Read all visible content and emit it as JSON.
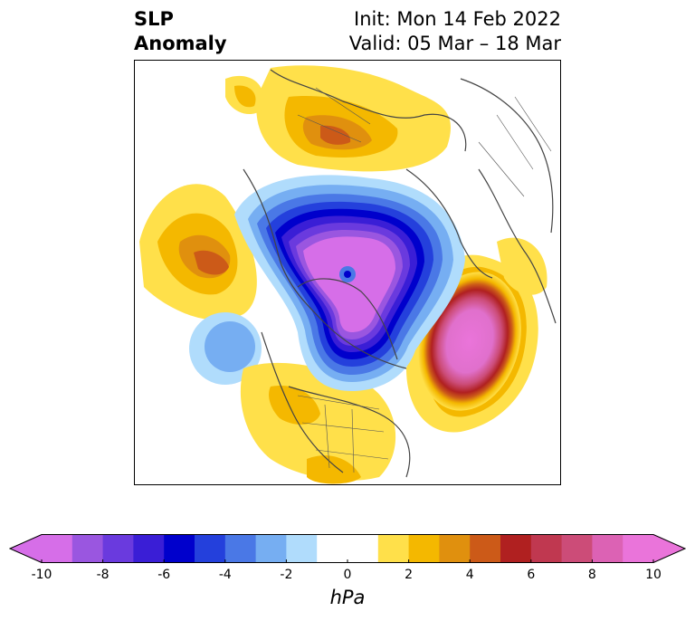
{
  "title": {
    "line1": "SLP",
    "line2": "Anomaly"
  },
  "subtitle": {
    "line1": "Init: Mon 14 Feb 2022",
    "line2": "Valid: 05 Mar – 18 Mar"
  },
  "colorbar": {
    "units": "hPa",
    "ticks": [
      "-10",
      "-8",
      "-6",
      "-4",
      "-2",
      "0",
      "2",
      "4",
      "6",
      "8",
      "10"
    ],
    "levels": [
      -10,
      10
    ],
    "extend": "both",
    "colors": [
      "#d66ee8",
      "#9a56e0",
      "#6a3ade",
      "#3a1ed6",
      "#0000cc",
      "#2440dc",
      "#4a78e6",
      "#76aef2",
      "#b0dcfc",
      "#ffffff",
      "#ffffff",
      "#ffe04a",
      "#f4b800",
      "#e0900e",
      "#cc5a18",
      "#b02020",
      "#c03850",
      "#cc4c78",
      "#dc62b4",
      "#ea74da"
    ],
    "under_color": "#d66ee8",
    "over_color": "#ea74da"
  },
  "map": {
    "projection": "north-polar-stereographic",
    "variable": "SLP",
    "features": [
      {
        "name": "arctic-low",
        "sign": "negative",
        "approx_min_hPa": -10
      },
      {
        "name": "north-atlantic-high",
        "sign": "positive",
        "approx_max_hPa": 10
      },
      {
        "name": "north-pacific-high",
        "sign": "positive",
        "approx_max_hPa": 5
      },
      {
        "name": "west-pacific-low",
        "sign": "negative",
        "approx_min_hPa": -4
      },
      {
        "name": "eurasia-high",
        "sign": "positive",
        "approx_max_hPa": 5
      },
      {
        "name": "north-america-high",
        "sign": "positive",
        "approx_max_hPa": 3
      }
    ]
  }
}
